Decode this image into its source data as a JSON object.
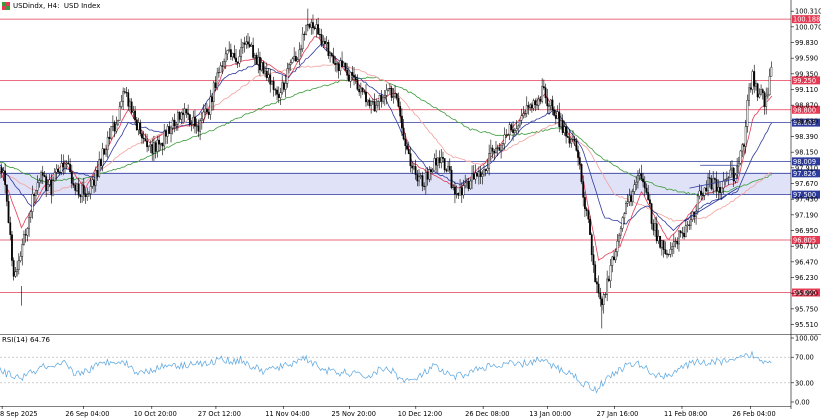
{
  "header": {
    "symbol": "USDindx",
    "timeframe": "H4",
    "name": "USD Index"
  },
  "rsi_panel": {
    "label": "RSI(14) 64.76"
  },
  "chart_data": {
    "type": "candlestick",
    "title": "USDindx, H4:  USD Index",
    "y_ticks": [
      "100.310",
      "100.070",
      "99.830",
      "99.590",
      "99.350",
      "99.110",
      "98.870",
      "98.630",
      "98.390",
      "98.150",
      "97.910",
      "97.670",
      "97.430",
      "97.190",
      "96.950",
      "96.710",
      "96.470",
      "96.230",
      "95.990",
      "95.750",
      "95.510"
    ],
    "ylim": [
      95.38,
      100.42
    ],
    "x_ticks": [
      "8 Sep 2025",
      "26 Sep 04:00",
      "10 Oct 20:00",
      "27 Oct 12:00",
      "11 Nov 04:00",
      "25 Nov 20:00",
      "10 Dec 12:00",
      "26 Dec 08:00",
      "13 Jan 00:00",
      "27 Jan 16:00",
      "11 Feb 08:00",
      "26 Feb 04:00"
    ],
    "horizontal_levels": [
      {
        "label": "100.188",
        "value": 100.188,
        "color": "#e53a53"
      },
      {
        "label": "99.250",
        "value": 99.25,
        "color": "#e53a53"
      },
      {
        "label": "98.800",
        "value": 98.8,
        "color": "#e53a53"
      },
      {
        "label": "98.603",
        "value": 98.603,
        "color": "#2d3a9e"
      },
      {
        "label": "98.009",
        "value": 98.009,
        "color": "#2d3a9e"
      },
      {
        "label": "97.826",
        "value": 97.826,
        "color": "#2d3a9e"
      },
      {
        "label": "97.500",
        "value": 97.5,
        "color": "#2d3a9e"
      },
      {
        "label": "96.805",
        "value": 96.805,
        "color": "#e53a53"
      },
      {
        "label": "96.000",
        "value": 96.0,
        "color": "#e53a53"
      }
    ],
    "series_anchors": [
      [
        0,
        97.85
      ],
      [
        5,
        97.7
      ],
      [
        12,
        96.3
      ],
      [
        20,
        96.6
      ],
      [
        28,
        97.3
      ],
      [
        38,
        97.75
      ],
      [
        48,
        97.6
      ],
      [
        55,
        97.9
      ],
      [
        62,
        98.05
      ],
      [
        70,
        97.6
      ],
      [
        82,
        97.5
      ],
      [
        92,
        97.9
      ],
      [
        100,
        98.3
      ],
      [
        108,
        98.6
      ],
      [
        116,
        99.05
      ],
      [
        124,
        98.8
      ],
      [
        132,
        98.4
      ],
      [
        140,
        98.15
      ],
      [
        150,
        98.3
      ],
      [
        160,
        98.55
      ],
      [
        172,
        98.75
      ],
      [
        185,
        98.5
      ],
      [
        195,
        98.8
      ],
      [
        205,
        99.45
      ],
      [
        212,
        99.7
      ],
      [
        222,
        99.6
      ],
      [
        230,
        99.9
      ],
      [
        238,
        99.6
      ],
      [
        246,
        99.4
      ],
      [
        254,
        99.2
      ],
      [
        262,
        99.05
      ],
      [
        272,
        99.5
      ],
      [
        280,
        99.65
      ],
      [
        288,
        100.15
      ],
      [
        296,
        100.0
      ],
      [
        304,
        99.8
      ],
      [
        312,
        99.6
      ],
      [
        322,
        99.4
      ],
      [
        332,
        99.2
      ],
      [
        342,
        98.95
      ],
      [
        350,
        98.85
      ],
      [
        358,
        99.05
      ],
      [
        366,
        99.1
      ],
      [
        372,
        98.9
      ],
      [
        378,
        98.3
      ],
      [
        385,
        97.9
      ],
      [
        392,
        97.7
      ],
      [
        400,
        97.75
      ],
      [
        410,
        98.1
      ],
      [
        418,
        97.9
      ],
      [
        426,
        97.55
      ],
      [
        434,
        97.6
      ],
      [
        442,
        97.75
      ],
      [
        450,
        97.8
      ],
      [
        460,
        98.15
      ],
      [
        470,
        98.3
      ],
      [
        478,
        98.5
      ],
      [
        486,
        98.6
      ],
      [
        494,
        98.8
      ],
      [
        502,
        98.9
      ],
      [
        508,
        99.1
      ],
      [
        514,
        98.9
      ],
      [
        522,
        98.65
      ],
      [
        530,
        98.4
      ],
      [
        540,
        98.2
      ],
      [
        546,
        97.5
      ],
      [
        552,
        96.9
      ],
      [
        557,
        96.2
      ],
      [
        563,
        95.85
      ],
      [
        570,
        96.3
      ],
      [
        576,
        96.7
      ],
      [
        584,
        97.2
      ],
      [
        592,
        97.55
      ],
      [
        598,
        97.75
      ],
      [
        604,
        97.5
      ],
      [
        612,
        97.0
      ],
      [
        618,
        96.7
      ],
      [
        624,
        96.65
      ],
      [
        632,
        96.8
      ],
      [
        640,
        96.9
      ],
      [
        648,
        97.2
      ],
      [
        656,
        97.55
      ],
      [
        664,
        97.7
      ],
      [
        672,
        97.6
      ],
      [
        680,
        97.75
      ],
      [
        690,
        97.85
      ],
      [
        696,
        98.3
      ],
      [
        700,
        99.1
      ],
      [
        704,
        99.3
      ],
      [
        710,
        99.05
      ],
      [
        716,
        98.9
      ],
      [
        722,
        99.4
      ]
    ],
    "ma_fast_anchors": [
      [
        0,
        97.9
      ],
      [
        20,
        97.0
      ],
      [
        40,
        97.6
      ],
      [
        60,
        98.0
      ],
      [
        80,
        97.6
      ],
      [
        100,
        98.2
      ],
      [
        120,
        98.8
      ],
      [
        140,
        98.3
      ],
      [
        160,
        98.5
      ],
      [
        190,
        98.6
      ],
      [
        210,
        99.45
      ],
      [
        240,
        99.6
      ],
      [
        270,
        99.3
      ],
      [
        295,
        99.95
      ],
      [
        320,
        99.45
      ],
      [
        350,
        98.95
      ],
      [
        370,
        99.05
      ],
      [
        385,
        98.0
      ],
      [
        405,
        97.8
      ],
      [
        430,
        97.6
      ],
      [
        460,
        98.1
      ],
      [
        490,
        98.75
      ],
      [
        510,
        99.05
      ],
      [
        540,
        98.2
      ],
      [
        560,
        96.5
      ],
      [
        580,
        96.7
      ],
      [
        600,
        97.55
      ],
      [
        625,
        96.8
      ],
      [
        660,
        97.5
      ],
      [
        690,
        97.7
      ],
      [
        705,
        98.7
      ],
      [
        722,
        99.0
      ]
    ],
    "ma_mid_anchors": [
      [
        0,
        97.95
      ],
      [
        30,
        97.3
      ],
      [
        60,
        97.9
      ],
      [
        90,
        97.75
      ],
      [
        120,
        98.6
      ],
      [
        150,
        98.45
      ],
      [
        180,
        98.6
      ],
      [
        210,
        99.3
      ],
      [
        240,
        99.5
      ],
      [
        270,
        99.3
      ],
      [
        300,
        99.8
      ],
      [
        330,
        99.35
      ],
      [
        360,
        99.0
      ],
      [
        380,
        98.3
      ],
      [
        400,
        97.9
      ],
      [
        430,
        97.65
      ],
      [
        460,
        98.0
      ],
      [
        490,
        98.55
      ],
      [
        520,
        98.8
      ],
      [
        545,
        98.2
      ],
      [
        565,
        97.15
      ],
      [
        585,
        97.05
      ],
      [
        605,
        97.35
      ],
      [
        630,
        96.95
      ],
      [
        660,
        97.35
      ],
      [
        690,
        97.55
      ],
      [
        705,
        98.1
      ],
      [
        722,
        98.6
      ]
    ],
    "ma_slow_anchors": [
      [
        0,
        97.85
      ],
      [
        40,
        97.5
      ],
      [
        80,
        97.7
      ],
      [
        120,
        98.2
      ],
      [
        160,
        98.5
      ],
      [
        200,
        98.85
      ],
      [
        240,
        99.3
      ],
      [
        280,
        99.45
      ],
      [
        320,
        99.5
      ],
      [
        360,
        99.25
      ],
      [
        390,
        98.7
      ],
      [
        420,
        98.1
      ],
      [
        450,
        97.95
      ],
      [
        480,
        98.25
      ],
      [
        520,
        98.6
      ],
      [
        550,
        98.2
      ],
      [
        575,
        97.5
      ],
      [
        600,
        97.35
      ],
      [
        630,
        97.1
      ],
      [
        660,
        97.15
      ],
      [
        690,
        97.45
      ],
      [
        722,
        97.85
      ]
    ],
    "ma_long_anchors": [
      [
        0,
        98.0
      ],
      [
        40,
        97.7
      ],
      [
        80,
        97.75
      ],
      [
        120,
        97.95
      ],
      [
        160,
        98.25
      ],
      [
        200,
        98.5
      ],
      [
        240,
        98.8
      ],
      [
        280,
        99.05
      ],
      [
        320,
        99.25
      ],
      [
        350,
        99.3
      ],
      [
        380,
        99.1
      ],
      [
        410,
        98.8
      ],
      [
        440,
        98.5
      ],
      [
        470,
        98.4
      ],
      [
        500,
        98.45
      ],
      [
        530,
        98.55
      ],
      [
        560,
        98.1
      ],
      [
        590,
        97.8
      ],
      [
        620,
        97.6
      ],
      [
        650,
        97.5
      ],
      [
        680,
        97.55
      ],
      [
        722,
        97.8
      ]
    ],
    "rsi_ticks": [
      "100.00",
      "70.00",
      "30.00",
      "0.00"
    ],
    "rsi_levels": [
      70,
      30
    ],
    "rsi_anchors": [
      [
        0,
        48
      ],
      [
        10,
        42
      ],
      [
        20,
        38
      ],
      [
        30,
        46
      ],
      [
        40,
        55
      ],
      [
        50,
        52
      ],
      [
        60,
        60
      ],
      [
        70,
        44
      ],
      [
        80,
        48
      ],
      [
        90,
        56
      ],
      [
        100,
        62
      ],
      [
        110,
        66
      ],
      [
        120,
        58
      ],
      [
        130,
        44
      ],
      [
        140,
        50
      ],
      [
        150,
        54
      ],
      [
        160,
        60
      ],
      [
        170,
        56
      ],
      [
        180,
        62
      ],
      [
        195,
        58
      ],
      [
        205,
        68
      ],
      [
        215,
        64
      ],
      [
        225,
        66
      ],
      [
        235,
        56
      ],
      [
        245,
        48
      ],
      [
        255,
        52
      ],
      [
        265,
        55
      ],
      [
        275,
        62
      ],
      [
        285,
        70
      ],
      [
        295,
        58
      ],
      [
        305,
        50
      ],
      [
        315,
        44
      ],
      [
        325,
        46
      ],
      [
        335,
        42
      ],
      [
        345,
        40
      ],
      [
        355,
        50
      ],
      [
        365,
        52
      ],
      [
        375,
        36
      ],
      [
        385,
        32
      ],
      [
        395,
        42
      ],
      [
        405,
        56
      ],
      [
        415,
        46
      ],
      [
        425,
        38
      ],
      [
        435,
        44
      ],
      [
        445,
        50
      ],
      [
        455,
        56
      ],
      [
        465,
        54
      ],
      [
        475,
        60
      ],
      [
        485,
        58
      ],
      [
        495,
        62
      ],
      [
        505,
        66
      ],
      [
        515,
        58
      ],
      [
        525,
        50
      ],
      [
        535,
        44
      ],
      [
        545,
        30
      ],
      [
        552,
        24
      ],
      [
        558,
        20
      ],
      [
        565,
        32
      ],
      [
        575,
        46
      ],
      [
        585,
        56
      ],
      [
        595,
        60
      ],
      [
        605,
        52
      ],
      [
        615,
        40
      ],
      [
        625,
        42
      ],
      [
        635,
        52
      ],
      [
        645,
        58
      ],
      [
        655,
        64
      ],
      [
        665,
        60
      ],
      [
        675,
        64
      ],
      [
        685,
        62
      ],
      [
        695,
        70
      ],
      [
        705,
        74
      ],
      [
        712,
        62
      ],
      [
        722,
        66
      ]
    ],
    "colors": {
      "candle": "#000000",
      "ma_fast": "#e53a53",
      "ma_mid": "#2d3a9e",
      "ma_slow": "#f3a09c",
      "ma_long": "#3c9a3c",
      "zone": "#dde0f7",
      "rsi": "#5aa6e0"
    }
  }
}
